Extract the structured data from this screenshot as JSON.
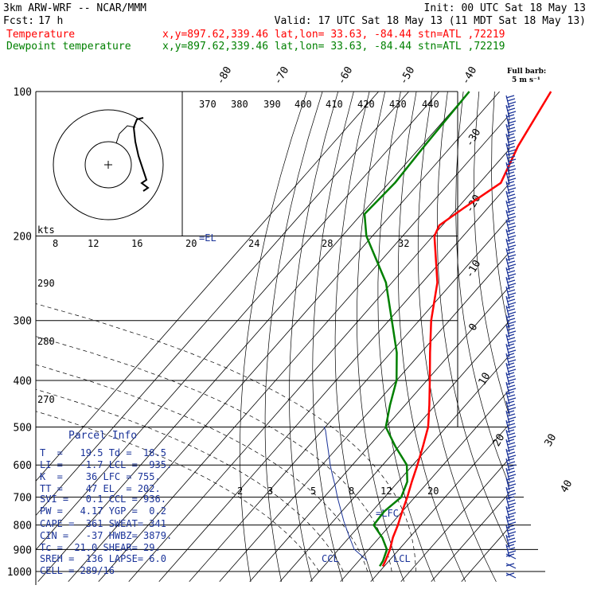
{
  "header": {
    "model": "3km ARW-WRF -- NCAR/MMM",
    "init": "Init: 00 UTC Sat 18 May 13",
    "fcst_label": "Fcst:",
    "fcst_value": "17 h",
    "valid": "Valid: 17 UTC Sat 18 May 13 (11 MDT Sat 18 May 13)",
    "temp_label": "Temperature",
    "dew_label": "Dewpoint temperature",
    "location": "x,y=897.62,339.46   lat,lon= 33.63, -84.44   stn=ATL ,72219",
    "barb_note_line1": "Full barb:",
    "barb_note_line2": "5 m s⁻¹"
  },
  "colors": {
    "temperature": "#ff0000",
    "dewpoint": "#008000",
    "theta_text": "#000000",
    "parcel_text": "#1a3399",
    "barbs": "#1a3399",
    "parcel_line": "#1a3399"
  },
  "chart_data": {
    "type": "line",
    "title": "",
    "xlabel": "",
    "ylabel": "",
    "y_axis": "pressure (hPa), log scale",
    "pressure_levels": [
      100,
      200,
      300,
      400,
      500,
      600,
      700,
      800,
      900,
      1000
    ],
    "pressure_tick_labels": [
      "100",
      "200",
      "300",
      "400",
      "500",
      "600",
      "700",
      "800",
      "900",
      "1000"
    ],
    "isotherm_labels": [
      "-80",
      "-70",
      "-60",
      "-50",
      "-40",
      "-30",
      "-20",
      "-10",
      "0",
      "10",
      "20",
      "30",
      "40"
    ],
    "isotherm_values": [
      -80,
      -70,
      -60,
      -50,
      -40,
      -30,
      -20,
      -10,
      0,
      10,
      20,
      30,
      40
    ],
    "theta_labels": [
      "370",
      "380",
      "390",
      "400",
      "410",
      "420",
      "430",
      "440"
    ],
    "mixing_ratio_labels": [
      "2",
      "3",
      "5",
      "8",
      "12",
      "20"
    ],
    "lower_theta_labels": [
      "290",
      "280",
      "270"
    ],
    "hodograph_speed_labels": [
      "8",
      "12",
      "16",
      "20",
      "24",
      "28",
      "32"
    ],
    "hodograph_units_label": "kts",
    "el_marker": "=EL",
    "lfc_marker": "=LFC",
    "lcl_marker": "LCL",
    "ccl_marker": "CCL",
    "series": [
      {
        "name": "Temperature",
        "color": "#ff0000",
        "points": [
          {
            "p": 100,
            "t": -63
          },
          {
            "p": 130,
            "t": -58
          },
          {
            "p": 155,
            "t": -53
          },
          {
            "p": 175,
            "t": -58
          },
          {
            "p": 190,
            "t": -61
          },
          {
            "p": 200,
            "t": -59.5
          },
          {
            "p": 250,
            "t": -45
          },
          {
            "p": 300,
            "t": -36
          },
          {
            "p": 350,
            "t": -27
          },
          {
            "p": 400,
            "t": -19
          },
          {
            "p": 450,
            "t": -12
          },
          {
            "p": 500,
            "t": -6
          },
          {
            "p": 550,
            "t": -2
          },
          {
            "p": 600,
            "t": 1.5
          },
          {
            "p": 650,
            "t": 4.5
          },
          {
            "p": 700,
            "t": 7.5
          },
          {
            "p": 750,
            "t": 10
          },
          {
            "p": 800,
            "t": 12.5
          },
          {
            "p": 850,
            "t": 14.5
          },
          {
            "p": 900,
            "t": 17
          },
          {
            "p": 950,
            "t": 18.8
          },
          {
            "p": 975,
            "t": 19.5
          }
        ]
      },
      {
        "name": "Dewpoint temperature",
        "color": "#008000",
        "points": [
          {
            "p": 100,
            "t": -90
          },
          {
            "p": 130,
            "t": -89
          },
          {
            "p": 155,
            "t": -88
          },
          {
            "p": 180,
            "t": -89
          },
          {
            "p": 200,
            "t": -82
          },
          {
            "p": 250,
            "t": -62
          },
          {
            "p": 300,
            "t": -49
          },
          {
            "p": 350,
            "t": -38
          },
          {
            "p": 400,
            "t": -30
          },
          {
            "p": 450,
            "t": -25
          },
          {
            "p": 500,
            "t": -20
          },
          {
            "p": 550,
            "t": -11
          },
          {
            "p": 600,
            "t": -2
          },
          {
            "p": 650,
            "t": 3
          },
          {
            "p": 700,
            "t": 5.5
          },
          {
            "p": 750,
            "t": 4
          },
          {
            "p": 800,
            "t": 4.5
          },
          {
            "p": 850,
            "t": 11
          },
          {
            "p": 900,
            "t": 16
          },
          {
            "p": 950,
            "t": 18
          },
          {
            "p": 975,
            "t": 18.5
          }
        ]
      }
    ]
  },
  "parcel_info": {
    "title": "Parcel Info",
    "rows": [
      "T  =   19.5 Td =  18.5",
      "LI =   -1.7 LCL =  935.",
      "K  =    36 LFC = 755.",
      "TT =    47 EL  = 202.",
      "SVI =   0.1 CCL = 936.",
      "PW =   4.17 YGP =  0.2",
      "CAPE =  361 SWEAT= 341",
      "CIN =   -37 HWBZ= 3879.",
      "Tc =  21.0 SHEAR= 29.",
      "SREH =  136 LAPSE= 6.0",
      "CELL = 289/16"
    ]
  }
}
